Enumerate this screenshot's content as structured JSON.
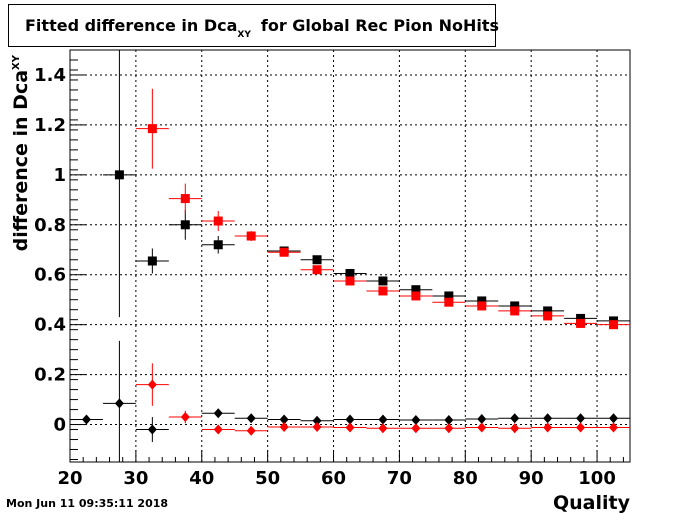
{
  "title": {
    "prefix": "Fitted difference in Dca",
    "subscript": "XY",
    "suffix": "for Global Rec Pion NoHits"
  },
  "footer": "Mon Jun 11 09:35:11 2018",
  "colors": {
    "black": "#000000",
    "red": "#ff0000",
    "grid": "#000000"
  },
  "chart_data": {
    "type": "scatter",
    "xlabel": "Quality",
    "ylabel": {
      "main": "difference in Dca",
      "subscript": "XY"
    },
    "xlim": [
      20,
      105
    ],
    "ylim": [
      -0.15,
      1.5
    ],
    "grid": true,
    "xticks": [
      20,
      30,
      40,
      50,
      60,
      70,
      80,
      90,
      100
    ],
    "yticks": [
      0,
      0.2,
      0.4,
      0.6,
      0.8,
      1,
      1.2,
      1.4
    ],
    "ytick_labels": [
      "0",
      "0.2",
      "0.4",
      "0.6",
      "0.8",
      "1",
      "1.2",
      "1.4"
    ],
    "series": [
      {
        "marker": "square",
        "color": "#000000",
        "points": [
          {
            "x": 27.5,
            "y": 1.0,
            "xerr": 2.5,
            "yerr": 0.57
          },
          {
            "x": 32.5,
            "y": 0.655,
            "xerr": 2.5,
            "yerr": 0.05
          },
          {
            "x": 37.5,
            "y": 0.8,
            "xerr": 2.5,
            "yerr": 0.06
          },
          {
            "x": 42.5,
            "y": 0.72,
            "xerr": 2.5,
            "yerr": 0.035
          },
          {
            "x": 52.5,
            "y": 0.695,
            "xerr": 2.5,
            "yerr": 0.01
          },
          {
            "x": 57.5,
            "y": 0.66,
            "xerr": 2.5,
            "yerr": 0.01
          },
          {
            "x": 62.5,
            "y": 0.605,
            "xerr": 2.5,
            "yerr": 0.01
          },
          {
            "x": 67.5,
            "y": 0.575,
            "xerr": 2.5,
            "yerr": 0.01
          },
          {
            "x": 72.5,
            "y": 0.54,
            "xerr": 2.5,
            "yerr": 0.01
          },
          {
            "x": 77.5,
            "y": 0.515,
            "xerr": 2.5,
            "yerr": 0.01
          },
          {
            "x": 82.5,
            "y": 0.495,
            "xerr": 2.5,
            "yerr": 0.01
          },
          {
            "x": 87.5,
            "y": 0.475,
            "xerr": 2.5,
            "yerr": 0.01
          },
          {
            "x": 92.5,
            "y": 0.455,
            "xerr": 2.5,
            "yerr": 0.01
          },
          {
            "x": 97.5,
            "y": 0.425,
            "xerr": 2.5,
            "yerr": 0.01
          },
          {
            "x": 102.5,
            "y": 0.415,
            "xerr": 2.5,
            "yerr": 0.01
          }
        ]
      },
      {
        "marker": "square",
        "color": "#ff0000",
        "points": [
          {
            "x": 32.5,
            "y": 1.185,
            "xerr": 2.5,
            "yerr": 0.16
          },
          {
            "x": 37.5,
            "y": 0.905,
            "xerr": 2.5,
            "yerr": 0.06
          },
          {
            "x": 42.5,
            "y": 0.815,
            "xerr": 2.5,
            "yerr": 0.04
          },
          {
            "x": 47.5,
            "y": 0.755,
            "xerr": 2.5,
            "yerr": 0.02
          },
          {
            "x": 52.5,
            "y": 0.69,
            "xerr": 2.5,
            "yerr": 0.01
          },
          {
            "x": 57.5,
            "y": 0.62,
            "xerr": 2.5,
            "yerr": 0.01
          },
          {
            "x": 62.5,
            "y": 0.575,
            "xerr": 2.5,
            "yerr": 0.01
          },
          {
            "x": 67.5,
            "y": 0.535,
            "xerr": 2.5,
            "yerr": 0.01
          },
          {
            "x": 72.5,
            "y": 0.515,
            "xerr": 2.5,
            "yerr": 0.01
          },
          {
            "x": 77.5,
            "y": 0.49,
            "xerr": 2.5,
            "yerr": 0.01
          },
          {
            "x": 82.5,
            "y": 0.475,
            "xerr": 2.5,
            "yerr": 0.01
          },
          {
            "x": 87.5,
            "y": 0.455,
            "xerr": 2.5,
            "yerr": 0.01
          },
          {
            "x": 92.5,
            "y": 0.435,
            "xerr": 2.5,
            "yerr": 0.01
          },
          {
            "x": 97.5,
            "y": 0.405,
            "xerr": 2.5,
            "yerr": 0.01
          },
          {
            "x": 102.5,
            "y": 0.4,
            "xerr": 2.5,
            "yerr": 0.01
          }
        ]
      },
      {
        "marker": "diamond",
        "color": "#000000",
        "points": [
          {
            "x": 22.5,
            "y": 0.02,
            "xerr": 2.5,
            "yerr": 0
          },
          {
            "x": 27.5,
            "y": 0.085,
            "xerr": 2.5,
            "yerr": 0.25
          },
          {
            "x": 32.5,
            "y": -0.02,
            "xerr": 2.5,
            "yerr": 0.05
          },
          {
            "x": 42.5,
            "y": 0.045,
            "xerr": 2.5,
            "yerr": 0.01
          },
          {
            "x": 47.5,
            "y": 0.025,
            "xerr": 2.5,
            "yerr": 0.005
          },
          {
            "x": 52.5,
            "y": 0.02,
            "xerr": 2.5,
            "yerr": 0.005
          },
          {
            "x": 57.5,
            "y": 0.015,
            "xerr": 2.5,
            "yerr": 0.005
          },
          {
            "x": 62.5,
            "y": 0.02,
            "xerr": 2.5,
            "yerr": 0.005
          },
          {
            "x": 67.5,
            "y": 0.02,
            "xerr": 2.5,
            "yerr": 0.005
          },
          {
            "x": 72.5,
            "y": 0.018,
            "xerr": 2.5,
            "yerr": 0.005
          },
          {
            "x": 77.5,
            "y": 0.018,
            "xerr": 2.5,
            "yerr": 0.005
          },
          {
            "x": 82.5,
            "y": 0.022,
            "xerr": 2.5,
            "yerr": 0.005
          },
          {
            "x": 87.5,
            "y": 0.025,
            "xerr": 2.5,
            "yerr": 0.005
          },
          {
            "x": 92.5,
            "y": 0.025,
            "xerr": 2.5,
            "yerr": 0.005
          },
          {
            "x": 97.5,
            "y": 0.025,
            "xerr": 2.5,
            "yerr": 0.005
          },
          {
            "x": 102.5,
            "y": 0.025,
            "xerr": 2.5,
            "yerr": 0.005
          }
        ]
      },
      {
        "marker": "diamond",
        "color": "#ff0000",
        "points": [
          {
            "x": 32.5,
            "y": 0.16,
            "xerr": 2.5,
            "yerr": 0.085
          },
          {
            "x": 37.5,
            "y": 0.03,
            "xerr": 2.5,
            "yerr": 0.025
          },
          {
            "x": 42.5,
            "y": -0.02,
            "xerr": 2.5,
            "yerr": 0.01
          },
          {
            "x": 47.5,
            "y": -0.025,
            "xerr": 2.5,
            "yerr": 0.005
          },
          {
            "x": 52.5,
            "y": -0.01,
            "xerr": 2.5,
            "yerr": 0.005
          },
          {
            "x": 57.5,
            "y": -0.01,
            "xerr": 2.5,
            "yerr": 0.005
          },
          {
            "x": 62.5,
            "y": -0.012,
            "xerr": 2.5,
            "yerr": 0.005
          },
          {
            "x": 67.5,
            "y": -0.015,
            "xerr": 2.5,
            "yerr": 0.005
          },
          {
            "x": 72.5,
            "y": -0.015,
            "xerr": 2.5,
            "yerr": 0.005
          },
          {
            "x": 77.5,
            "y": -0.015,
            "xerr": 2.5,
            "yerr": 0.005
          },
          {
            "x": 82.5,
            "y": -0.012,
            "xerr": 2.5,
            "yerr": 0.005
          },
          {
            "x": 87.5,
            "y": -0.015,
            "xerr": 2.5,
            "yerr": 0.005
          },
          {
            "x": 92.5,
            "y": -0.012,
            "xerr": 2.5,
            "yerr": 0.005
          },
          {
            "x": 97.5,
            "y": -0.012,
            "xerr": 2.5,
            "yerr": 0.005
          },
          {
            "x": 102.5,
            "y": -0.012,
            "xerr": 2.5,
            "yerr": 0.005
          }
        ]
      }
    ]
  }
}
